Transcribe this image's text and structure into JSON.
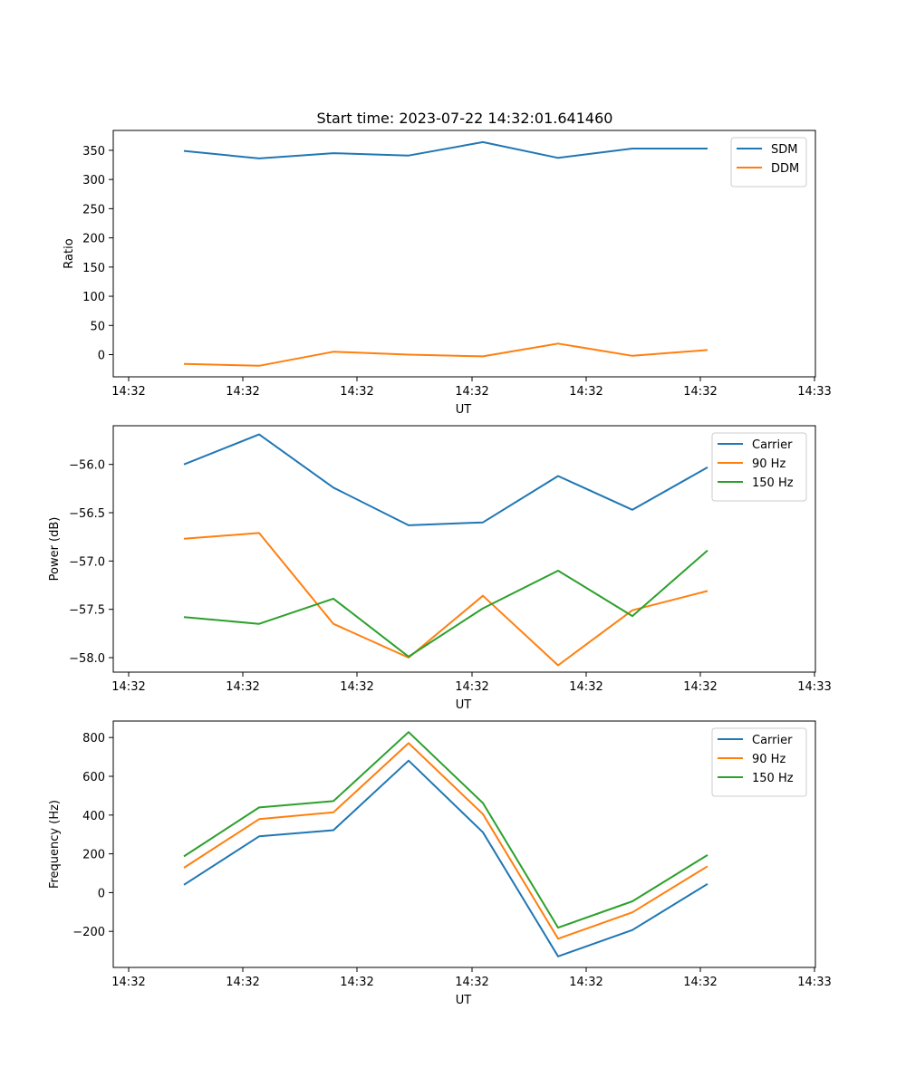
{
  "figure_title": "Start time: 2023-07-22 14:32:01.641460",
  "chart_data": [
    {
      "type": "line",
      "ylabel": "Ratio",
      "xlabel": "UT",
      "x_tick_labels": [
        "14:32",
        "14:32",
        "14:32",
        "14:32",
        "14:32",
        "14:32",
        "14:33"
      ],
      "y_ticks": [
        0,
        50,
        100,
        150,
        200,
        250,
        300,
        350
      ],
      "ylim": [
        -38,
        384
      ],
      "grid": false,
      "legend": "top-right",
      "series": [
        {
          "name": "SDM",
          "color": "#1f77b4",
          "values": [
            349,
            336,
            345,
            341,
            364,
            337,
            353,
            353
          ]
        },
        {
          "name": "DDM",
          "color": "#ff7f0e",
          "values": [
            -16,
            -19,
            5,
            0,
            -3,
            19,
            -2,
            8
          ]
        }
      ]
    },
    {
      "type": "line",
      "ylabel": "Power (dB)",
      "xlabel": "UT",
      "x_tick_labels": [
        "14:32",
        "14:32",
        "14:32",
        "14:32",
        "14:32",
        "14:32",
        "14:33"
      ],
      "y_ticks": [
        -56.0,
        -56.5,
        -57.0,
        -57.5,
        -58.0
      ],
      "y_tick_labels": [
        "−56.0",
        "−56.5",
        "−57.0",
        "−57.5",
        "−58.0"
      ],
      "ylim": [
        -58.15,
        -55.6
      ],
      "grid": false,
      "legend": "top-right",
      "series": [
        {
          "name": "Carrier",
          "color": "#1f77b4",
          "values": [
            -56.0,
            -55.69,
            -56.24,
            -56.63,
            -56.6,
            -56.12,
            -56.47,
            -56.03
          ]
        },
        {
          "name": "90 Hz",
          "color": "#ff7f0e",
          "values": [
            -56.77,
            -56.71,
            -57.65,
            -58.0,
            -57.36,
            -58.08,
            -57.51,
            -57.31
          ]
        },
        {
          "name": "150 Hz",
          "color": "#2ca02c",
          "values": [
            -57.58,
            -57.65,
            -57.39,
            -57.99,
            -57.49,
            -57.1,
            -57.57,
            -56.89
          ]
        }
      ]
    },
    {
      "type": "line",
      "ylabel": "Frequency (Hz)",
      "xlabel": "UT",
      "x_tick_labels": [
        "14:32",
        "14:32",
        "14:32",
        "14:32",
        "14:32",
        "14:32",
        "14:33"
      ],
      "y_ticks": [
        -200,
        0,
        200,
        400,
        600,
        800
      ],
      "y_tick_labels": [
        "−200",
        "0",
        "200",
        "400",
        "600",
        "800"
      ],
      "ylim": [
        -386,
        885
      ],
      "grid": false,
      "legend": "top-right",
      "series": [
        {
          "name": "Carrier",
          "color": "#1f77b4",
          "values": [
            40,
            290,
            322,
            681,
            311,
            -329,
            -193,
            45
          ]
        },
        {
          "name": "90 Hz",
          "color": "#ff7f0e",
          "values": [
            128,
            379,
            414,
            771,
            405,
            -238,
            -102,
            136
          ]
        },
        {
          "name": "150 Hz",
          "color": "#2ca02c",
          "values": [
            187,
            439,
            472,
            828,
            462,
            -181,
            -45,
            194
          ]
        }
      ]
    }
  ]
}
